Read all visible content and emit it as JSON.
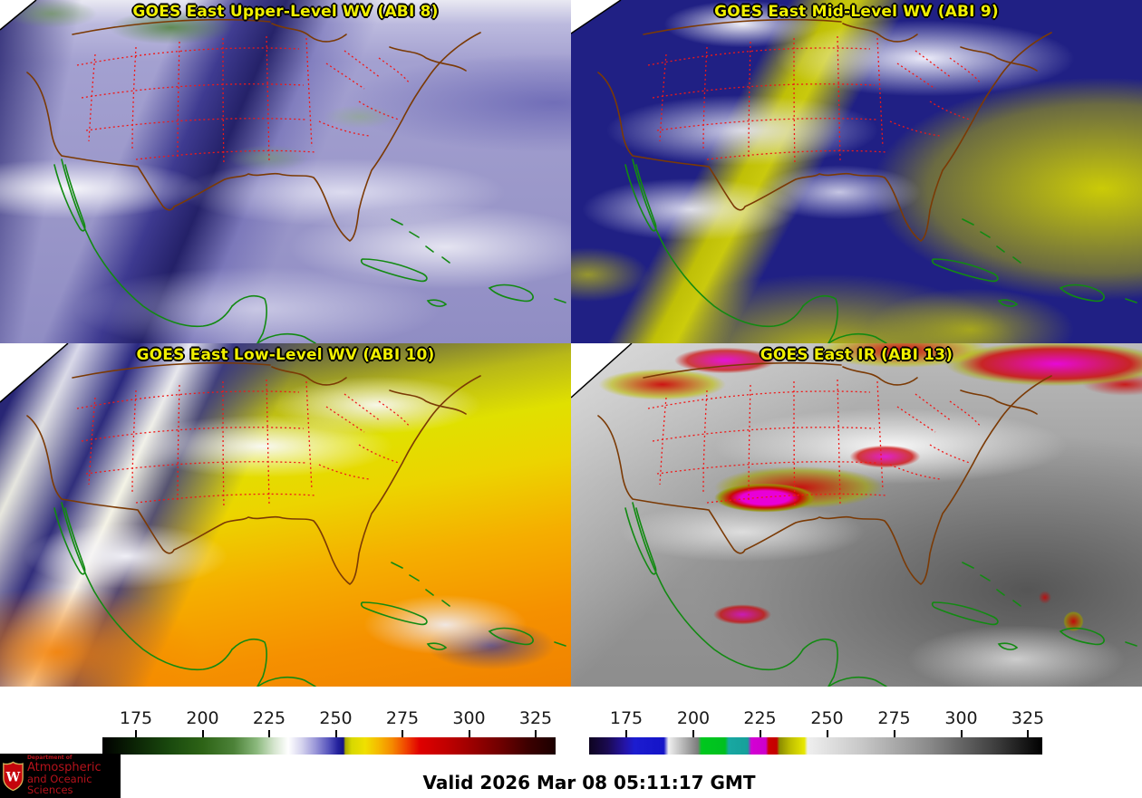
{
  "panels": [
    {
      "id": "abi8",
      "title": "GOES East Upper-Level WV (ABI 8)"
    },
    {
      "id": "abi9",
      "title": "GOES East Mid-Level WV (ABI 9)"
    },
    {
      "id": "abi10",
      "title": "GOES East Low-Level WV (ABI 10)"
    },
    {
      "id": "abi13",
      "title": "GOES East IR (ABI 13)"
    }
  ],
  "colorbars": [
    {
      "id": "wv-colorbar",
      "ticks": [
        {
          "label": "175",
          "pos": 7.4
        },
        {
          "label": "200",
          "pos": 22.1
        },
        {
          "label": "225",
          "pos": 36.8
        },
        {
          "label": "250",
          "pos": 51.5
        },
        {
          "label": "275",
          "pos": 66.2
        },
        {
          "label": "300",
          "pos": 80.9
        },
        {
          "label": "325",
          "pos": 95.6
        }
      ],
      "gradient": [
        {
          "p": 0,
          "c": "#000000"
        },
        {
          "p": 7,
          "c": "#0b2305"
        },
        {
          "p": 15,
          "c": "#1a4a0e"
        },
        {
          "p": 22,
          "c": "#2d6316"
        },
        {
          "p": 29,
          "c": "#4c8238"
        },
        {
          "p": 34,
          "c": "#8ab87c"
        },
        {
          "p": 38,
          "c": "#d7e6d0"
        },
        {
          "p": 41,
          "c": "#ffffff"
        },
        {
          "p": 44,
          "c": "#d5d3ee"
        },
        {
          "p": 47,
          "c": "#9a97d8"
        },
        {
          "p": 50,
          "c": "#5553bc"
        },
        {
          "p": 52,
          "c": "#23219c"
        },
        {
          "p": 53.2,
          "c": "#141384"
        },
        {
          "p": 53.6,
          "c": "#a8a800"
        },
        {
          "p": 55,
          "c": "#d8d800"
        },
        {
          "p": 58,
          "c": "#f0e000"
        },
        {
          "p": 61,
          "c": "#f5b800"
        },
        {
          "p": 64,
          "c": "#f58800"
        },
        {
          "p": 67,
          "c": "#f04400"
        },
        {
          "p": 70,
          "c": "#e00000"
        },
        {
          "p": 76,
          "c": "#c00000"
        },
        {
          "p": 82,
          "c": "#980000"
        },
        {
          "p": 88,
          "c": "#6e0000"
        },
        {
          "p": 94,
          "c": "#3c0000"
        },
        {
          "p": 100,
          "c": "#1c0000"
        }
      ]
    },
    {
      "id": "ir-colorbar",
      "ticks": [
        {
          "label": "175",
          "pos": 8.2
        },
        {
          "label": "200",
          "pos": 23.0
        },
        {
          "label": "225",
          "pos": 37.7
        },
        {
          "label": "250",
          "pos": 52.5
        },
        {
          "label": "275",
          "pos": 67.3
        },
        {
          "label": "300",
          "pos": 82.1
        },
        {
          "label": "325",
          "pos": 96.8
        }
      ],
      "gradient": [
        {
          "p": 0,
          "c": "#0e0420"
        },
        {
          "p": 4,
          "c": "#1a0a50"
        },
        {
          "p": 8,
          "c": "#2414a8"
        },
        {
          "p": 10,
          "c": "#1c1cd0"
        },
        {
          "p": 16.5,
          "c": "#1414c8"
        },
        {
          "p": 17.5,
          "c": "#f0f0f0"
        },
        {
          "p": 24,
          "c": "#7c7c7c"
        },
        {
          "p": 24.8,
          "c": "#00c81e"
        },
        {
          "p": 30,
          "c": "#00c020"
        },
        {
          "p": 30.8,
          "c": "#18a8a2"
        },
        {
          "p": 35,
          "c": "#16a09a"
        },
        {
          "p": 35.8,
          "c": "#d400d4"
        },
        {
          "p": 39,
          "c": "#cc00cc"
        },
        {
          "p": 39.6,
          "c": "#cc0000"
        },
        {
          "p": 41.4,
          "c": "#c40000"
        },
        {
          "p": 42,
          "c": "#8c8c00"
        },
        {
          "p": 44.5,
          "c": "#c0c000"
        },
        {
          "p": 47.5,
          "c": "#e8e800"
        },
        {
          "p": 48.2,
          "c": "#efefef"
        },
        {
          "p": 60,
          "c": "#c8c8c8"
        },
        {
          "p": 75,
          "c": "#8a8a8a"
        },
        {
          "p": 90,
          "c": "#3c3c3c"
        },
        {
          "p": 100,
          "c": "#000000"
        }
      ]
    }
  ],
  "footer": {
    "valid": "Valid 2026 Mar 08 05:11:17 GMT"
  },
  "logo": {
    "dept": "Department of",
    "line1": "Atmospheric",
    "line2": "and Oceanic Sciences",
    "crest_letter": "W",
    "bg": "#000000",
    "text_color": "#b5121b"
  },
  "map_colors": {
    "state_borders": "#f01818",
    "us_coastline": "#7b3a05",
    "international_coastline": "#128a12",
    "panel_title_text": "#f0f000"
  }
}
